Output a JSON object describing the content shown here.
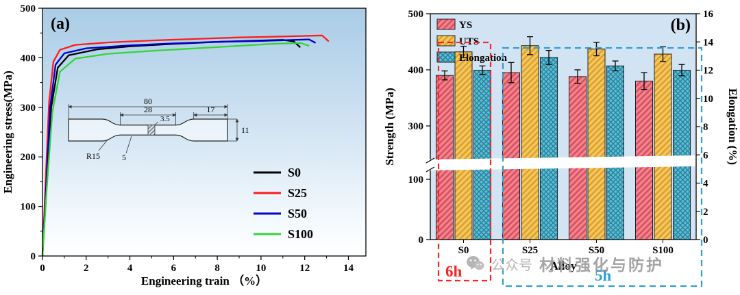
{
  "watermark": {
    "prefix": "公众号",
    "name": "材料强化与防护"
  },
  "chart_data": [
    {
      "type": "line",
      "panel_label": "(a)",
      "xlabel": "Engineering train （%）",
      "ylabel": "Engineering stress(MPa)",
      "xlim": [
        0,
        14.8
      ],
      "ylim": [
        0,
        500
      ],
      "x_ticks": [
        0,
        2,
        4,
        6,
        8,
        10,
        12,
        14
      ],
      "y_ticks": [
        0,
        100,
        200,
        300,
        400,
        500
      ],
      "series": [
        {
          "name": "S0",
          "color": "#000000",
          "points": [
            [
              0,
              0
            ],
            [
              0.2,
              150
            ],
            [
              0.4,
              300
            ],
            [
              0.7,
              380
            ],
            [
              1.2,
              405
            ],
            [
              2.5,
              417
            ],
            [
              4,
              423
            ],
            [
              6,
              428
            ],
            [
              8,
              432
            ],
            [
              10,
              435
            ],
            [
              11,
              436
            ],
            [
              11.5,
              433
            ],
            [
              11.8,
              421
            ]
          ]
        },
        {
          "name": "S25",
          "color": "#ff1a1a",
          "points": [
            [
              0,
              0
            ],
            [
              0.15,
              160
            ],
            [
              0.3,
              310
            ],
            [
              0.5,
              392
            ],
            [
              0.8,
              416
            ],
            [
              1.5,
              426
            ],
            [
              3,
              431
            ],
            [
              5,
              435
            ],
            [
              7,
              438
            ],
            [
              9,
              441
            ],
            [
              11,
              443
            ],
            [
              12,
              444
            ],
            [
              12.8,
              445
            ],
            [
              13.1,
              433
            ]
          ]
        },
        {
          "name": "S50",
          "color": "#0000cd",
          "points": [
            [
              0,
              0
            ],
            [
              0.18,
              150
            ],
            [
              0.35,
              300
            ],
            [
              0.6,
              386
            ],
            [
              1.0,
              409
            ],
            [
              2,
              419
            ],
            [
              4,
              425
            ],
            [
              6,
              429
            ],
            [
              8,
              432
            ],
            [
              10,
              434
            ],
            [
              11.5,
              436
            ],
            [
              12.2,
              437
            ],
            [
              12.5,
              430
            ]
          ]
        },
        {
          "name": "S100",
          "color": "#35d435",
          "points": [
            [
              0,
              0
            ],
            [
              0.2,
              140
            ],
            [
              0.45,
              290
            ],
            [
              0.8,
              372
            ],
            [
              1.5,
              398
            ],
            [
              3,
              408
            ],
            [
              5,
              414
            ],
            [
              7,
              419
            ],
            [
              9,
              424
            ],
            [
              10.5,
              428
            ],
            [
              11.8,
              430
            ],
            [
              12.2,
              424
            ]
          ]
        }
      ],
      "inset_specimen": {
        "dim_total": "80",
        "dim_gauge": "28",
        "dim_notch": "3.5",
        "dim_grip": "17",
        "dim_height": "11",
        "dim_width": "5",
        "dim_radius": "R15"
      }
    },
    {
      "type": "bar",
      "panel_label": "(b)",
      "xlabel": "Alloy",
      "ylabel_left": "Strength (MPa)",
      "ylabel_right": "Elongation (%)",
      "categories": [
        "S0",
        "S25",
        "S50",
        "S100"
      ],
      "left_ticks": [
        0,
        100,
        300,
        400,
        500
      ],
      "right_ticks": [
        0,
        2,
        4,
        6,
        8,
        10,
        12,
        14,
        16
      ],
      "axis_break": [
        100,
        300
      ],
      "right_lim": [
        0,
        16
      ],
      "series": [
        {
          "name": "YS",
          "axis": "left",
          "color": "#f2848f",
          "hatch": "diag",
          "values": [
            390,
            395,
            388,
            380
          ],
          "errors": [
            8,
            18,
            12,
            15
          ]
        },
        {
          "name": "UTS",
          "axis": "left",
          "color": "#f6c75f",
          "hatch": "diag",
          "values": [
            432,
            443,
            437,
            428
          ],
          "errors": [
            10,
            16,
            12,
            13
          ]
        },
        {
          "name": "Elongation",
          "axis": "right",
          "color": "#62bcd2",
          "hatch": "cross",
          "values": [
            12.0,
            12.9,
            12.3,
            12.0
          ],
          "errors": [
            0.3,
            0.5,
            0.35,
            0.4
          ]
        }
      ],
      "annotations": [
        {
          "text": "6h",
          "color": "#ff2222",
          "groups": [
            "S0"
          ]
        },
        {
          "text": "5h",
          "color": "#2e9fd0",
          "groups": [
            "S25",
            "S50",
            "S100"
          ]
        }
      ]
    }
  ]
}
